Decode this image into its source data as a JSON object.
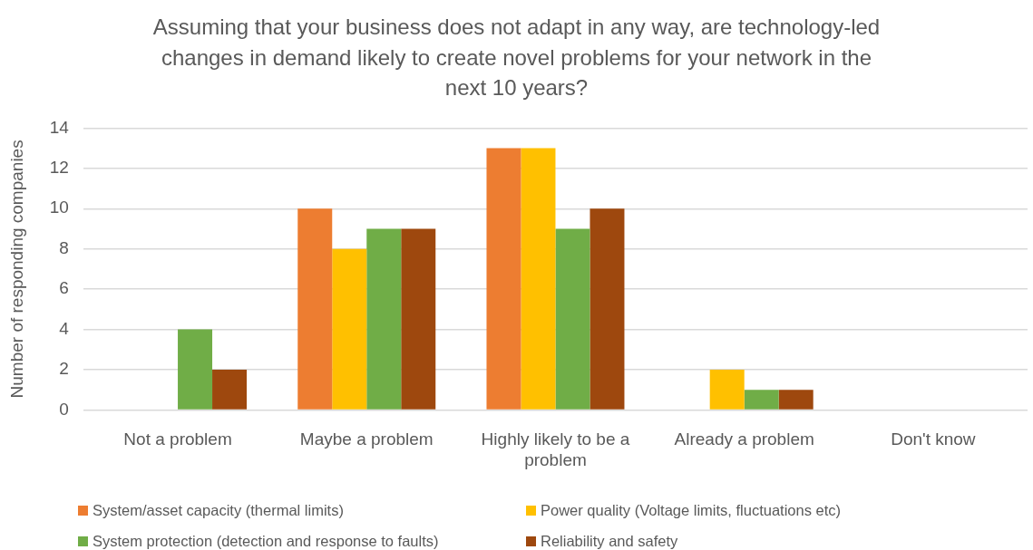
{
  "chart_data": {
    "type": "bar",
    "title": "Assuming that your business does not adapt in any way, are technology-led changes in demand likely to create novel problems for your network in the next 10 years?",
    "ylabel": "Number of responding companies",
    "categories": [
      "Not a problem",
      "Maybe a problem",
      "Highly likely to be a problem",
      "Already a problem",
      "Don't know"
    ],
    "series": [
      {
        "name": "System/asset capacity (thermal limits)",
        "color": "#ed7d31",
        "values": [
          0,
          10,
          13,
          0,
          0
        ]
      },
      {
        "name": "Power quality (Voltage limits, fluctuations etc)",
        "color": "#ffc000",
        "values": [
          0,
          8,
          13,
          2,
          0
        ]
      },
      {
        "name": "System protection (detection and response to faults)",
        "color": "#70ad47",
        "values": [
          4,
          9,
          9,
          1,
          0
        ]
      },
      {
        "name": "Reliability and safety",
        "color": "#9e480e",
        "values": [
          2,
          9,
          10,
          1,
          0
        ]
      }
    ],
    "ylim": [
      0,
      14
    ],
    "yticks": [
      0,
      2,
      4,
      6,
      8,
      10,
      12,
      14
    ],
    "grid": "y",
    "legend": "bottom"
  }
}
